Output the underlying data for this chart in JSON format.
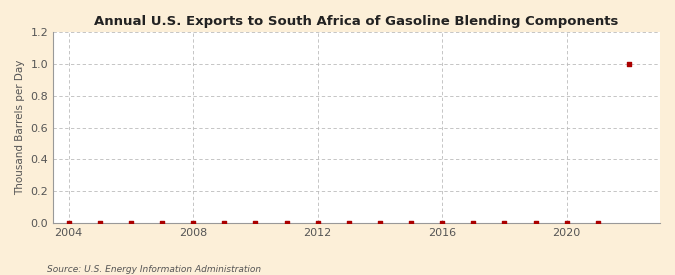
{
  "title": "Annual U.S. Exports to South Africa of Gasoline Blending Components",
  "ylabel": "Thousand Barrels per Day",
  "source": "Source: U.S. Energy Information Administration",
  "xlim": [
    2003.5,
    2023.0
  ],
  "ylim": [
    0.0,
    1.2
  ],
  "yticks": [
    0.0,
    0.2,
    0.4,
    0.6,
    0.8,
    1.0,
    1.2
  ],
  "xticks": [
    2004,
    2008,
    2012,
    2016,
    2020
  ],
  "background_color": "#fcefd8",
  "plot_background_color": "#ffffff",
  "grid_color": "#bbbbbb",
  "data_color": "#aa0000",
  "marker_size": 3.5,
  "years": [
    2004,
    2005,
    2006,
    2007,
    2008,
    2009,
    2010,
    2011,
    2012,
    2013,
    2014,
    2015,
    2016,
    2017,
    2018,
    2019,
    2020,
    2021,
    2022
  ],
  "values": [
    0.0,
    0.0,
    0.0,
    0.0,
    0.0,
    0.0,
    0.0,
    0.0,
    0.0,
    0.0,
    0.0,
    0.0,
    0.0,
    0.0,
    0.0,
    0.0,
    0.0,
    0.0,
    1.0
  ]
}
